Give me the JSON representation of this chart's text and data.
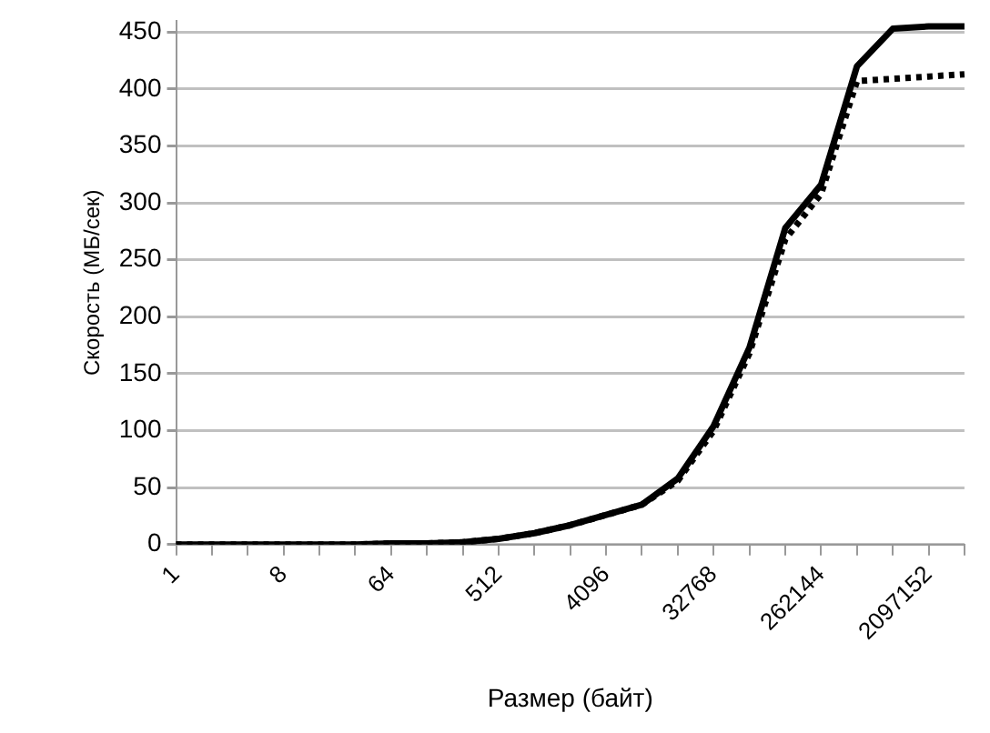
{
  "chart_data": {
    "type": "line",
    "xlabel": "Размер (байт)",
    "ylabel": "Скорость (МБ/сек)",
    "categories": [
      "1",
      null,
      null,
      "8",
      null,
      null,
      "64",
      null,
      null,
      "512",
      null,
      null,
      "4096",
      null,
      null,
      "32768",
      null,
      null,
      "262144",
      null,
      null,
      "2097152",
      null
    ],
    "series": [
      {
        "color": "#000000",
        "line_style": "solid",
        "values": [
          0,
          0,
          0,
          0,
          0,
          0,
          1,
          1,
          2,
          5,
          10,
          17,
          26,
          35,
          58,
          104,
          173,
          278,
          316,
          420,
          453,
          455,
          455
        ]
      },
      {
        "color": "#000000",
        "line_style": "dotted",
        "values": [
          0,
          0,
          0,
          0,
          0,
          0,
          1,
          1,
          2,
          5,
          10,
          17,
          26,
          35,
          56,
          100,
          168,
          268,
          308,
          407,
          409,
          411,
          413
        ]
      }
    ],
    "ylim": [
      0,
      460
    ],
    "yticks": [
      0,
      50,
      100,
      150,
      200,
      250,
      300,
      350,
      400,
      450
    ],
    "grid": "y",
    "legend": false,
    "marker": "none"
  }
}
